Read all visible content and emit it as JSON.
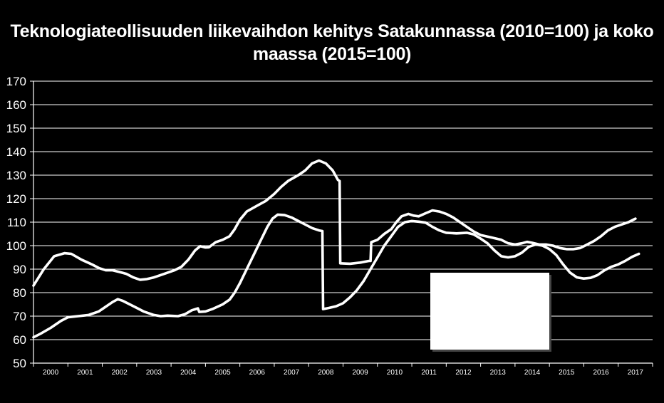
{
  "chart_data": {
    "type": "line",
    "title_line1": "Teknologiateollisuuden liikevaihdon kehitys Satakunnassa (2010=100) ja koko",
    "title_line2": "maassa (2015=100)",
    "xlabel": "",
    "ylabel": "",
    "ylim": [
      50,
      170
    ],
    "yticks": [
      "50",
      "60",
      "70",
      "80",
      "90",
      "100",
      "110",
      "120",
      "130",
      "140",
      "150",
      "160",
      "170"
    ],
    "categories": [
      "2000",
      "2001",
      "2002",
      "2003",
      "2004",
      "2005",
      "2006",
      "2007",
      "2008",
      "2009",
      "2010",
      "2011",
      "2012",
      "2013",
      "2014",
      "2015",
      "2016",
      "2017"
    ],
    "grid": true,
    "legend": "none",
    "line_color": "#ffffff",
    "background": "#000000",
    "series": [
      {
        "values": [
          [
            2000.0,
            83
          ],
          [
            2000.3,
            90
          ],
          [
            2000.6,
            95.5
          ],
          [
            2000.9,
            96.8
          ],
          [
            2001.1,
            96.5
          ],
          [
            2001.4,
            94
          ],
          [
            2001.7,
            92
          ],
          [
            2001.9,
            90.5
          ],
          [
            2002.1,
            89.5
          ],
          [
            2002.3,
            89.5
          ],
          [
            2002.5,
            88.8
          ],
          [
            2002.7,
            88
          ],
          [
            2002.9,
            86.5
          ],
          [
            2003.1,
            85.5
          ],
          [
            2003.3,
            85.8
          ],
          [
            2003.5,
            86.5
          ],
          [
            2003.7,
            87.5
          ],
          [
            2003.9,
            88.5
          ],
          [
            2004.1,
            89.5
          ],
          [
            2004.3,
            91
          ],
          [
            2004.5,
            94
          ],
          [
            2004.7,
            98
          ],
          [
            2004.85,
            99.8
          ],
          [
            2005.0,
            99.2
          ],
          [
            2005.1,
            99.3
          ],
          [
            2005.3,
            101.5
          ],
          [
            2005.5,
            102.5
          ],
          [
            2005.7,
            104
          ],
          [
            2005.85,
            107
          ],
          [
            2006.0,
            111
          ],
          [
            2006.2,
            114.5
          ],
          [
            2006.5,
            117
          ],
          [
            2006.75,
            119
          ],
          [
            2007.0,
            122
          ],
          [
            2007.2,
            125
          ],
          [
            2007.4,
            127.5
          ],
          [
            2007.7,
            130
          ],
          [
            2007.9,
            132
          ],
          [
            2008.1,
            135
          ],
          [
            2008.3,
            136.2
          ],
          [
            2008.5,
            135
          ],
          [
            2008.7,
            132
          ],
          [
            2008.85,
            128
          ],
          [
            2008.9,
            127.5
          ],
          [
            2008.92,
            92.5
          ],
          [
            2009.2,
            92.3
          ],
          [
            2009.5,
            92.8
          ],
          [
            2009.75,
            93.5
          ],
          [
            2009.8,
            93.5
          ],
          [
            2009.82,
            101.5
          ],
          [
            2010.0,
            102.5
          ],
          [
            2010.2,
            105
          ],
          [
            2010.4,
            107
          ],
          [
            2010.55,
            110
          ],
          [
            2010.7,
            112.5
          ],
          [
            2010.9,
            113.5
          ],
          [
            2011.05,
            112.8
          ],
          [
            2011.2,
            112.5
          ],
          [
            2011.4,
            113.8
          ],
          [
            2011.6,
            115
          ],
          [
            2011.8,
            114.5
          ],
          [
            2012.0,
            113.5
          ],
          [
            2012.2,
            112
          ],
          [
            2012.4,
            110
          ],
          [
            2012.6,
            108
          ],
          [
            2012.8,
            106
          ],
          [
            2013.0,
            104.5
          ],
          [
            2013.3,
            103.5
          ],
          [
            2013.6,
            102.5
          ],
          [
            2013.8,
            101
          ],
          [
            2014.0,
            100.5
          ],
          [
            2014.2,
            101
          ],
          [
            2014.35,
            101.6
          ],
          [
            2014.5,
            101.2
          ],
          [
            2014.7,
            100.5
          ],
          [
            2014.9,
            100.5
          ],
          [
            2015.1,
            100
          ],
          [
            2015.3,
            99
          ],
          [
            2015.5,
            98.5
          ],
          [
            2015.7,
            98.5
          ],
          [
            2015.9,
            99
          ],
          [
            2016.1,
            100.5
          ],
          [
            2016.3,
            102
          ],
          [
            2016.5,
            104
          ],
          [
            2016.7,
            106.5
          ],
          [
            2016.9,
            108
          ],
          [
            2017.1,
            109
          ],
          [
            2017.3,
            110
          ],
          [
            2017.5,
            111.5
          ]
        ]
      },
      {
        "values": [
          [
            2000.0,
            61
          ],
          [
            2000.2,
            62.5
          ],
          [
            2000.5,
            65
          ],
          [
            2000.8,
            68
          ],
          [
            2001.0,
            69.5
          ],
          [
            2001.3,
            70
          ],
          [
            2001.6,
            70.5
          ],
          [
            2001.9,
            72
          ],
          [
            2002.1,
            74
          ],
          [
            2002.3,
            76
          ],
          [
            2002.45,
            77.2
          ],
          [
            2002.6,
            76.5
          ],
          [
            2002.8,
            75
          ],
          [
            2003.0,
            73.5
          ],
          [
            2003.2,
            72
          ],
          [
            2003.5,
            70.5
          ],
          [
            2003.7,
            70
          ],
          [
            2003.9,
            70.2
          ],
          [
            2004.2,
            70
          ],
          [
            2004.4,
            70.8
          ],
          [
            2004.6,
            72.5
          ],
          [
            2004.78,
            73.3
          ],
          [
            2004.82,
            71.8
          ],
          [
            2005.0,
            72
          ],
          [
            2005.2,
            73
          ],
          [
            2005.5,
            75
          ],
          [
            2005.7,
            77
          ],
          [
            2005.85,
            80
          ],
          [
            2006.0,
            84
          ],
          [
            2006.2,
            90
          ],
          [
            2006.4,
            96
          ],
          [
            2006.6,
            102
          ],
          [
            2006.8,
            108
          ],
          [
            2006.95,
            111.5
          ],
          [
            2007.1,
            113.2
          ],
          [
            2007.3,
            113
          ],
          [
            2007.5,
            112
          ],
          [
            2007.7,
            110.5
          ],
          [
            2007.9,
            109
          ],
          [
            2008.1,
            107.5
          ],
          [
            2008.3,
            106.5
          ],
          [
            2008.4,
            106.2
          ],
          [
            2008.42,
            73
          ],
          [
            2008.6,
            73.5
          ],
          [
            2008.8,
            74.2
          ],
          [
            2009.0,
            75.5
          ],
          [
            2009.2,
            78
          ],
          [
            2009.4,
            81
          ],
          [
            2009.6,
            85
          ],
          [
            2009.8,
            90
          ],
          [
            2010.0,
            95
          ],
          [
            2010.2,
            100
          ],
          [
            2010.4,
            104
          ],
          [
            2010.6,
            108
          ],
          [
            2010.8,
            110
          ],
          [
            2011.0,
            110.5
          ],
          [
            2011.2,
            110.2
          ],
          [
            2011.4,
            109.8
          ],
          [
            2011.6,
            108
          ],
          [
            2011.8,
            106.5
          ],
          [
            2012.0,
            105.5
          ],
          [
            2012.3,
            105.2
          ],
          [
            2012.6,
            105.5
          ],
          [
            2012.8,
            104.8
          ],
          [
            2013.0,
            103
          ],
          [
            2013.2,
            101
          ],
          [
            2013.4,
            98
          ],
          [
            2013.6,
            95.5
          ],
          [
            2013.8,
            95
          ],
          [
            2014.0,
            95.5
          ],
          [
            2014.2,
            97
          ],
          [
            2014.4,
            99.5
          ],
          [
            2014.6,
            100.5
          ],
          [
            2014.8,
            100
          ],
          [
            2015.0,
            98.5
          ],
          [
            2015.2,
            96
          ],
          [
            2015.4,
            92
          ],
          [
            2015.6,
            88.5
          ],
          [
            2015.8,
            86.5
          ],
          [
            2016.0,
            86
          ],
          [
            2016.2,
            86.3
          ],
          [
            2016.4,
            87.5
          ],
          [
            2016.6,
            89.5
          ],
          [
            2016.8,
            91
          ],
          [
            2017.0,
            92
          ],
          [
            2017.2,
            93.5
          ],
          [
            2017.4,
            95.2
          ],
          [
            2017.6,
            96.5
          ]
        ]
      }
    ]
  },
  "overlay_box": {
    "color": "#ffffff"
  }
}
